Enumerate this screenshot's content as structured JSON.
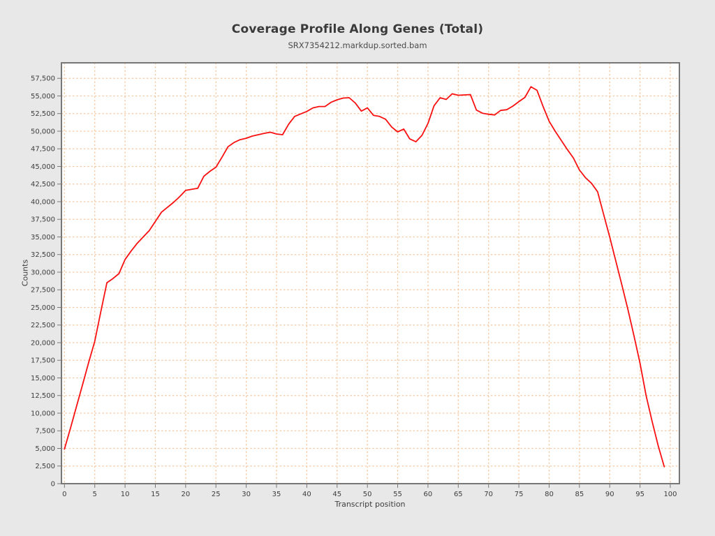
{
  "title": "Coverage Profile Along Genes (Total)",
  "subtitle": "SRX7354212.markdup.sorted.bam",
  "chart_data": {
    "type": "line",
    "title": "Coverage Profile Along Genes (Total)",
    "subtitle": "SRX7354212.markdup.sorted.bam",
    "xlabel": "Transcript position",
    "ylabel": "Counts",
    "grid": true,
    "legend_position": "none",
    "xlim": [
      -0.5,
      101.5
    ],
    "ylim": [
      0,
      59700
    ],
    "x_ticks": [
      0,
      5,
      10,
      15,
      20,
      25,
      30,
      35,
      40,
      45,
      50,
      55,
      60,
      65,
      70,
      75,
      80,
      85,
      90,
      95,
      100
    ],
    "y_ticks": [
      0,
      2500,
      5000,
      7500,
      10000,
      12500,
      15000,
      17500,
      20000,
      22500,
      25000,
      27500,
      30000,
      32500,
      35000,
      37500,
      40000,
      42500,
      45000,
      47500,
      50000,
      52500,
      55000,
      57500
    ],
    "y_tick_labels": [
      "0",
      "2,500",
      "5,000",
      "7,500",
      "10,000",
      "12,500",
      "15,000",
      "17,500",
      "20,000",
      "22,500",
      "25,000",
      "27,500",
      "30,000",
      "32,500",
      "35,000",
      "37,500",
      "40,000",
      "42,500",
      "45,000",
      "47,500",
      "50,000",
      "52,500",
      "55,000",
      "57,500"
    ],
    "series": [
      {
        "name": "SRX7354212.markdup.sorted.bam",
        "color": "#f91010",
        "x_start": 0,
        "x_step": 1,
        "values": [
          4900,
          7900,
          11000,
          14100,
          17200,
          20200,
          24400,
          28500,
          29100,
          29800,
          31800,
          33000,
          34100,
          35000,
          35900,
          37200,
          38500,
          39200,
          39900,
          40700,
          41600,
          41750,
          41900,
          43600,
          44300,
          44900,
          46300,
          47800,
          48400,
          48800,
          49000,
          49300,
          49500,
          49700,
          49850,
          49600,
          49500,
          51000,
          52100,
          52450,
          52800,
          53300,
          53500,
          53500,
          54100,
          54450,
          54700,
          54750,
          54000,
          52850,
          53300,
          52250,
          52100,
          51700,
          50600,
          49900,
          50300,
          48900,
          48500,
          49400,
          51100,
          53600,
          54750,
          54500,
          55300,
          55100,
          55150,
          55200,
          53000,
          52550,
          52400,
          52300,
          52950,
          53050,
          53550,
          54200,
          54800,
          56300,
          55800,
          53500,
          51400,
          50000,
          48700,
          47400,
          46200,
          44500,
          43400,
          42600,
          41400,
          38200,
          35000,
          31600,
          28200,
          24700,
          21000,
          17100,
          12500,
          8800,
          5400,
          2400
        ]
      }
    ],
    "colors": {
      "background": "#e8e8e8",
      "plot_background": "#ffffff",
      "grid_color": "#f5c9a2",
      "border_color": "#777777",
      "tick_color": "#777777",
      "text_color": "#3d3d3d",
      "line_color": "#f91010"
    }
  }
}
